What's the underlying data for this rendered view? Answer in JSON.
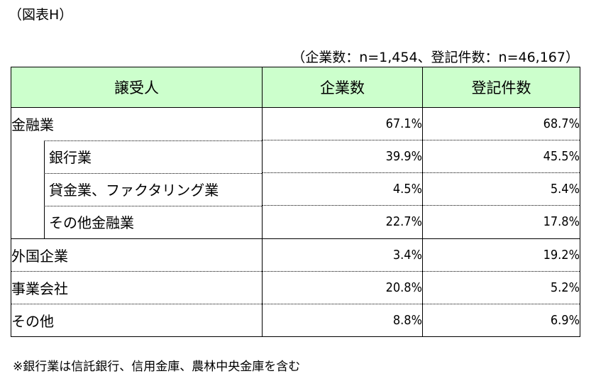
{
  "figure_label": "（図表H）",
  "sample_note": "（企業数：n=1,454、登記件数：n=46,167）",
  "table": {
    "headers": [
      "譲受人",
      "企業数",
      "登記件数"
    ],
    "rows": [
      {
        "label": "金融業",
        "companies": "67.1%",
        "registrations": "68.7%"
      },
      {
        "label": "銀行業",
        "companies": "39.9%",
        "registrations": "45.5%"
      },
      {
        "label": "貸金業、ファクタリング業",
        "companies": "4.5%",
        "registrations": "5.4%"
      },
      {
        "label": "その他金融業",
        "companies": "22.7%",
        "registrations": "17.8%"
      },
      {
        "label": "外国企業",
        "companies": "3.4%",
        "registrations": "19.2%"
      },
      {
        "label": "事業会社",
        "companies": "20.8%",
        "registrations": "5.2%"
      },
      {
        "label": "その他",
        "companies": "8.8%",
        "registrations": "6.9%"
      }
    ]
  },
  "footnote": "※銀行業は信託銀行、信用金庫、農林中央金庫を含む",
  "colors": {
    "header_bg": "#ccffcc"
  }
}
